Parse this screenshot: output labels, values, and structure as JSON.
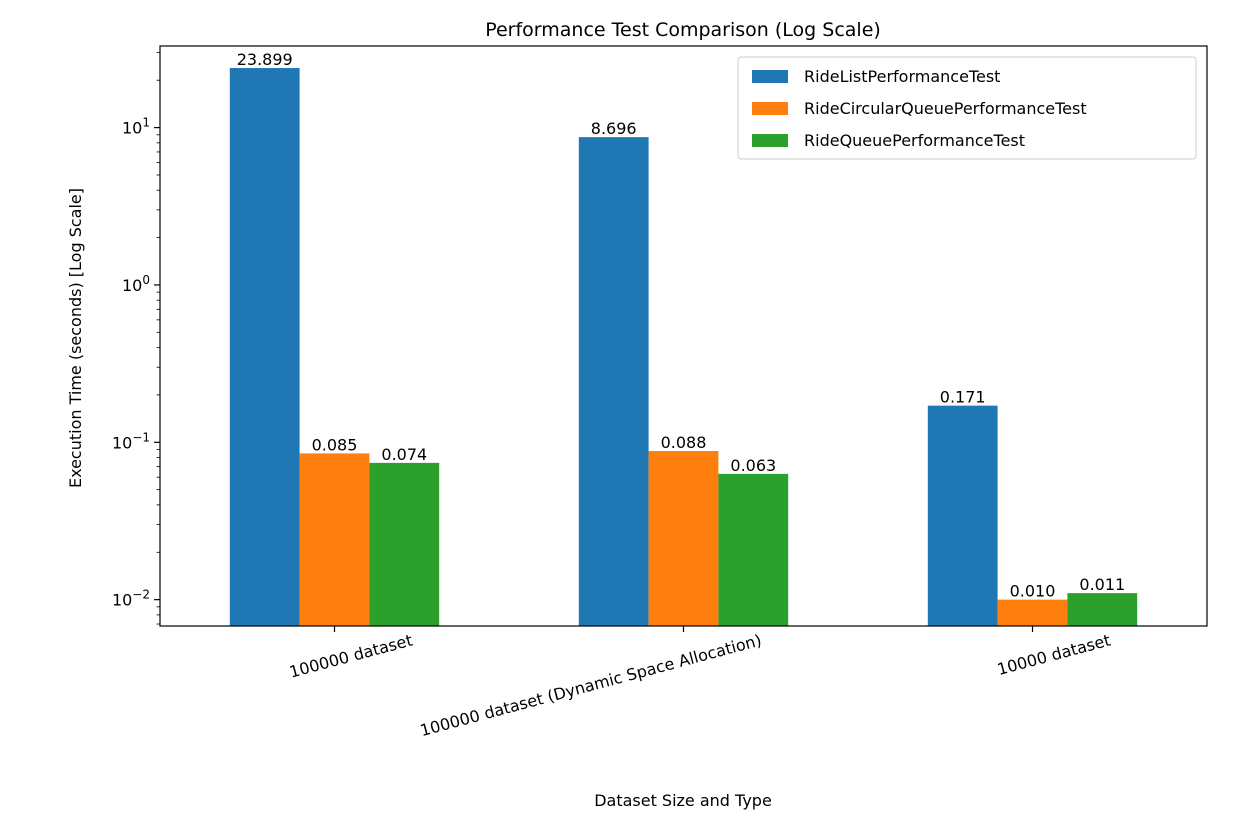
{
  "chart_data": {
    "type": "bar",
    "title": "Performance Test Comparison (Log Scale)",
    "xlabel": "Dataset Size and Type",
    "ylabel": "Execution Time (seconds) [Log Scale]",
    "y_scale": "log",
    "ylim": [
      0.0068,
      33
    ],
    "y_ticks": [
      {
        "value": 0.01,
        "base": "10",
        "exp": "−2"
      },
      {
        "value": 0.1,
        "base": "10",
        "exp": "−1"
      },
      {
        "value": 1,
        "base": "10",
        "exp": "0"
      },
      {
        "value": 10,
        "base": "10",
        "exp": "1"
      }
    ],
    "categories": [
      "100000 dataset",
      "100000 dataset (Dynamic Space Allocation)",
      "10000 dataset"
    ],
    "series": [
      {
        "name": "RideListPerformanceTest",
        "color": "#1f77b4",
        "values": [
          23.899,
          8.696,
          0.171
        ],
        "labels": [
          "23.899",
          "8.696",
          "0.171"
        ]
      },
      {
        "name": "RideCircularQueuePerformanceTest",
        "color": "#ff7f0e",
        "values": [
          0.085,
          0.088,
          0.01
        ],
        "labels": [
          "0.085",
          "0.088",
          "0.010"
        ]
      },
      {
        "name": "RideQueuePerformanceTest",
        "color": "#2ca02c",
        "values": [
          0.074,
          0.063,
          0.011
        ],
        "labels": [
          "0.074",
          "0.063",
          "0.011"
        ]
      }
    ],
    "legend_position": "top-right",
    "grid": false
  }
}
